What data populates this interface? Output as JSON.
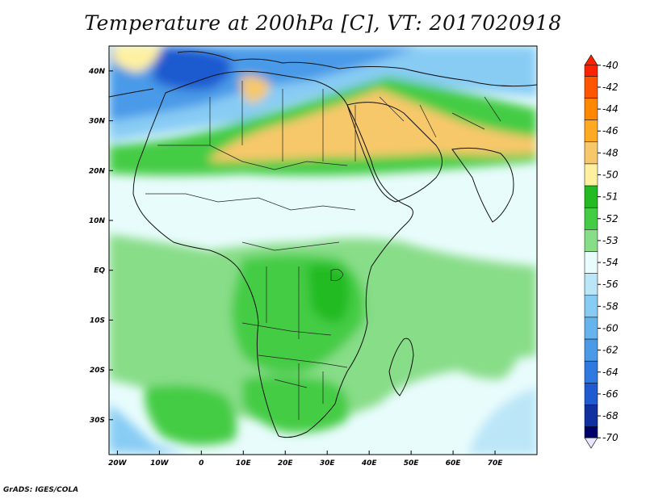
{
  "title": "Temperature at 200hPa [C], VT: 2017020918",
  "credit": "GrADS: IGES/COLA",
  "map": {
    "x_ticks": [
      "20W",
      "10W",
      "0",
      "10E",
      "20E",
      "30E",
      "40E",
      "50E",
      "60E",
      "70E"
    ],
    "y_ticks": [
      "40N",
      "30N",
      "20N",
      "10N",
      "EQ",
      "10S",
      "20S",
      "30S"
    ],
    "lon_range": [
      -22,
      80
    ],
    "lat_range": [
      -37,
      45
    ]
  },
  "legend": {
    "labels": [
      "-40",
      "-42",
      "-44",
      "-46",
      "-48",
      "-50",
      "-51",
      "-52",
      "-53",
      "-54",
      "-56",
      "-58",
      "-60",
      "-62",
      "-64",
      "-66",
      "-68",
      "-70"
    ],
    "colors": [
      "#ff2200",
      "#ff5500",
      "#ff8800",
      "#ffaa22",
      "#f7c86a",
      "#fff0a0",
      "#22bb22",
      "#44cc44",
      "#88dd88",
      "#e8fcfc",
      "#bbe6f8",
      "#88ccf4",
      "#66b4ee",
      "#4a9ae8",
      "#2f7ae0",
      "#1f5ad0",
      "#1030a0",
      "#00006a"
    ]
  }
}
